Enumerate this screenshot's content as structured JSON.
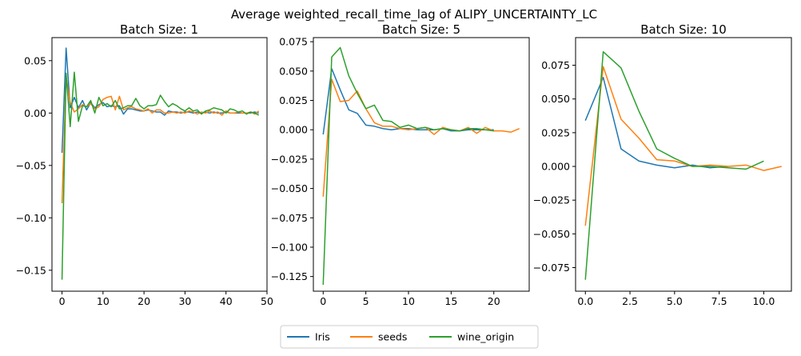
{
  "suptitle": "Average weighted_recall_time_lag of ALIPY_UNCERTAINTY_LC",
  "colors": {
    "Iris": "#1f77b4",
    "seeds": "#ff7f0e",
    "wine_origin": "#2ca02c"
  },
  "legend": {
    "placement": "lower-center",
    "entries": [
      "Iris",
      "seeds",
      "wine_origin"
    ]
  },
  "chart_data": [
    {
      "type": "line",
      "title": "Batch Size: 1",
      "xlim": [
        -2.45,
        50
      ],
      "ylim": [
        -0.17,
        0.072
      ],
      "xticks": [
        0,
        10,
        20,
        30,
        40,
        50
      ],
      "yticks": [
        -0.15,
        -0.1,
        -0.05,
        0.0,
        0.05
      ],
      "ytick_labels": [
        "−0.15",
        "−0.10",
        "−0.05",
        "0.00",
        "0.05"
      ],
      "series": [
        {
          "name": "Iris",
          "x": [
            0,
            1,
            2,
            3,
            4,
            5,
            6,
            7,
            8,
            9,
            10,
            11,
            12,
            13,
            14,
            15,
            16,
            17,
            18,
            19,
            20,
            21,
            22,
            23,
            24,
            25,
            26,
            27,
            28,
            29,
            30,
            31,
            32,
            33,
            34,
            35,
            36,
            37,
            38,
            39,
            40,
            41,
            42,
            43,
            44,
            45,
            46,
            47,
            48
          ],
          "y": [
            -0.038,
            0.062,
            0.005,
            0.015,
            0.005,
            0.012,
            0.003,
            0.01,
            0.005,
            0.008,
            0.01,
            0.006,
            0.007,
            0.006,
            0.007,
            -0.001,
            0.004,
            0.004,
            0.003,
            0.002,
            0.002,
            0.003,
            0.002,
            0.001,
            0.001,
            -0.002,
            0.002,
            0.001,
            0.001,
            0.0,
            0.001,
            0.001,
            0.0,
            0.001,
            0.0,
            0.001,
            0.0,
            0.001,
            0.0,
            0.0,
            0.001,
            0.0,
            0.0,
            0.0,
            0.0,
            0.0,
            0.0,
            0.001,
            0.0
          ]
        },
        {
          "name": "seeds",
          "x": [
            0,
            1,
            2,
            3,
            4,
            5,
            6,
            7,
            8,
            9,
            10,
            11,
            12,
            13,
            14,
            15,
            16,
            17,
            18,
            19,
            20,
            21,
            22,
            23,
            24,
            25,
            26,
            27,
            28,
            29,
            30,
            31,
            32,
            33,
            34,
            35,
            36,
            37,
            38,
            39,
            40,
            41,
            42,
            43,
            44,
            45,
            46,
            47,
            48
          ],
          "y": [
            -0.086,
            0.035,
            0.01,
            0.001,
            0.004,
            0.008,
            0.006,
            0.009,
            0.004,
            0.006,
            0.013,
            0.015,
            0.016,
            0.003,
            0.016,
            0.003,
            0.005,
            0.006,
            0.004,
            0.003,
            0.002,
            0.004,
            0.0,
            0.003,
            0.003,
            0.0,
            0.0,
            0.001,
            0.0,
            0.001,
            0.0,
            0.002,
            0.001,
            -0.001,
            0.001,
            0.0,
            0.002,
            0.0,
            0.001,
            -0.002,
            0.002,
            0.0,
            0.0,
            0.001,
            0.0,
            0.0,
            0.001,
            -0.001,
            0.002
          ]
        },
        {
          "name": "wine_origin",
          "x": [
            0,
            1,
            2,
            3,
            4,
            5,
            6,
            7,
            8,
            9,
            10,
            11,
            12,
            13,
            14,
            15,
            16,
            17,
            18,
            19,
            20,
            21,
            22,
            23,
            24,
            25,
            26,
            27,
            28,
            29,
            30,
            31,
            32,
            33,
            34,
            35,
            36,
            37,
            38,
            39,
            40,
            41,
            42,
            43,
            44,
            45,
            46,
            47,
            48
          ],
          "y": [
            -0.159,
            0.038,
            -0.013,
            0.039,
            -0.008,
            0.007,
            0.006,
            0.012,
            0.0,
            0.015,
            0.007,
            0.009,
            0.006,
            0.012,
            0.004,
            0.005,
            0.007,
            0.007,
            0.014,
            0.007,
            0.004,
            0.007,
            0.007,
            0.008,
            0.017,
            0.011,
            0.006,
            0.009,
            0.007,
            0.004,
            0.002,
            0.005,
            0.002,
            0.003,
            -0.001,
            0.002,
            0.003,
            0.005,
            0.004,
            0.003,
            0.0,
            0.004,
            0.003,
            0.001,
            0.002,
            -0.001,
            0.001,
            0.0,
            -0.002
          ]
        }
      ]
    },
    {
      "type": "line",
      "title": "Batch Size: 5",
      "xlim": [
        -1.15,
        24.15
      ],
      "ylim": [
        -0.1375,
        0.0785
      ],
      "xticks": [
        0,
        5,
        10,
        15,
        20
      ],
      "yticks": [
        -0.125,
        -0.1,
        -0.075,
        -0.05,
        -0.025,
        0.0,
        0.025,
        0.05,
        0.075
      ],
      "ytick_labels": [
        "−0.125",
        "−0.100",
        "−0.075",
        "−0.050",
        "−0.025",
        "0.000",
        "0.025",
        "0.050",
        "0.075"
      ],
      "series": [
        {
          "name": "Iris",
          "x": [
            0,
            1,
            2,
            3,
            4,
            5,
            6,
            7,
            8,
            9,
            10,
            11,
            12,
            13,
            14,
            15,
            16,
            17,
            18,
            19,
            20
          ],
          "y": [
            -0.004,
            0.052,
            0.034,
            0.017,
            0.014,
            0.004,
            0.003,
            0.001,
            0.0,
            0.001,
            0.001,
            0.0,
            0.0,
            0.0,
            0.001,
            -0.001,
            -0.001,
            0.0,
            0.0,
            0.0,
            0.0
          ]
        },
        {
          "name": "seeds",
          "x": [
            0,
            1,
            2,
            3,
            4,
            5,
            6,
            7,
            8,
            9,
            10,
            11,
            12,
            13,
            14,
            15,
            16,
            17,
            18,
            19,
            20,
            21,
            22,
            23
          ],
          "y": [
            -0.057,
            0.043,
            0.024,
            0.025,
            0.033,
            0.018,
            0.006,
            0.003,
            0.003,
            0.001,
            0.0,
            0.001,
            0.002,
            -0.004,
            0.002,
            0.0,
            -0.001,
            0.002,
            -0.003,
            0.002,
            -0.001,
            -0.001,
            -0.002,
            0.001
          ]
        },
        {
          "name": "wine_origin",
          "x": [
            0,
            1,
            2,
            3,
            4,
            5,
            6,
            7,
            8,
            9,
            10,
            11,
            12,
            13,
            14,
            15,
            16,
            17,
            18,
            19,
            20
          ],
          "y": [
            -0.132,
            0.062,
            0.07,
            0.046,
            0.031,
            0.018,
            0.021,
            0.008,
            0.007,
            0.002,
            0.004,
            0.001,
            0.002,
            0.0,
            0.001,
            0.0,
            -0.001,
            0.001,
            0.001,
            0.0,
            -0.001
          ]
        }
      ]
    },
    {
      "type": "line",
      "title": "Batch Size: 10",
      "xlim": [
        -0.55,
        11.55
      ],
      "ylim": [
        -0.0925,
        0.0955
      ],
      "xticks": [
        0.0,
        2.5,
        5.0,
        7.5,
        10.0
      ],
      "xtick_labels": [
        "0.0",
        "2.5",
        "5.0",
        "7.5",
        "10.0"
      ],
      "yticks": [
        -0.075,
        -0.05,
        -0.025,
        0.0,
        0.025,
        0.05,
        0.075
      ],
      "ytick_labels": [
        "−0.075",
        "−0.050",
        "−0.025",
        "0.000",
        "0.025",
        "0.050",
        "0.075"
      ],
      "series": [
        {
          "name": "Iris",
          "x": [
            0,
            1,
            2,
            3,
            4,
            5,
            6,
            7,
            8
          ],
          "y": [
            0.034,
            0.066,
            0.013,
            0.004,
            0.001,
            -0.001,
            0.001,
            -0.001,
            0.0
          ]
        },
        {
          "name": "seeds",
          "x": [
            0,
            1,
            2,
            3,
            4,
            5,
            6,
            7,
            8,
            9,
            10,
            11
          ],
          "y": [
            -0.044,
            0.074,
            0.035,
            0.021,
            0.005,
            0.004,
            0.0,
            0.001,
            0.0,
            0.001,
            -0.003,
            0.0
          ]
        },
        {
          "name": "wine_origin",
          "x": [
            0,
            1,
            2,
            3,
            4,
            5,
            6,
            7,
            8,
            9,
            10
          ],
          "y": [
            -0.084,
            0.085,
            0.073,
            0.041,
            0.013,
            0.006,
            0.0,
            0.0,
            -0.001,
            -0.002,
            0.004
          ]
        }
      ]
    }
  ]
}
